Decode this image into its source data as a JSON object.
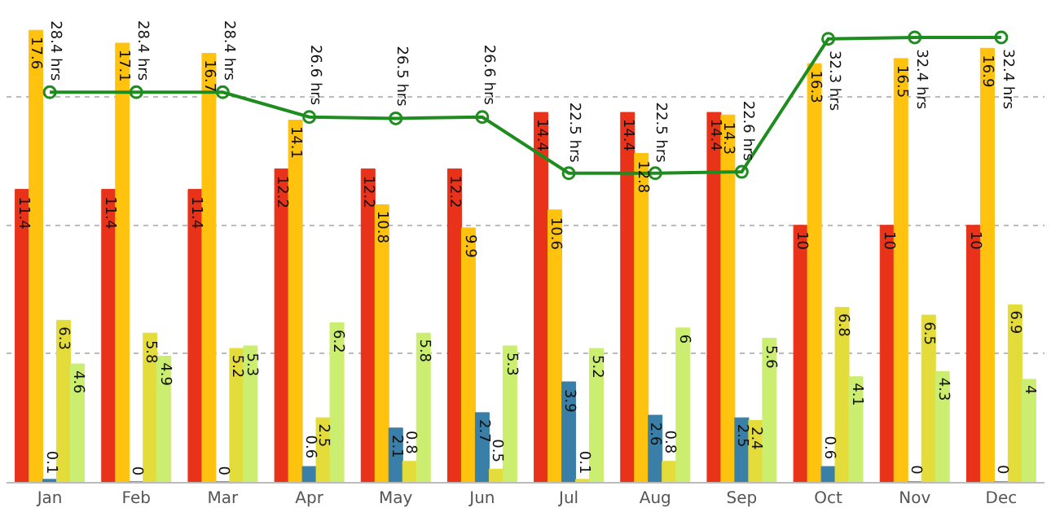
{
  "chart_data": {
    "type": "bar",
    "categories": [
      "Jan",
      "Feb",
      "Mar",
      "Apr",
      "May",
      "Jun",
      "Jul",
      "Aug",
      "Sep",
      "Oct",
      "Nov",
      "Dec"
    ],
    "series": [
      {
        "color": "#e8321a",
        "values": [
          11.4,
          11.4,
          11.4,
          12.2,
          12.2,
          12.2,
          14.4,
          14.4,
          14.4,
          10,
          10,
          10
        ]
      },
      {
        "color": "#ffc20e",
        "values": [
          17.6,
          17.1,
          16.7,
          14.1,
          10.8,
          9.9,
          10.6,
          12.8,
          14.3,
          16.3,
          16.5,
          16.9
        ]
      },
      {
        "color": "#3a7fa8",
        "values": [
          0.1,
          0,
          0,
          0.6,
          2.1,
          2.7,
          3.9,
          2.6,
          2.5,
          0.6,
          0,
          0
        ]
      },
      {
        "color": "#e4dc3a",
        "values": [
          6.3,
          5.8,
          5.2,
          2.5,
          0.8,
          0.5,
          0.1,
          0.8,
          2.4,
          6.8,
          6.5,
          6.9
        ]
      },
      {
        "color": "#ccee70",
        "values": [
          4.6,
          4.9,
          5.3,
          6.2,
          5.8,
          5.3,
          5.2,
          6,
          5.6,
          4.1,
          4.3,
          4
        ]
      },
      {
        "type": "line",
        "axis": "y2",
        "color": "#1e8c1e",
        "marker": "circle",
        "values": [
          28.4,
          28.4,
          28.4,
          26.6,
          26.5,
          26.6,
          22.5,
          22.5,
          22.6,
          32.3,
          32.4,
          32.4
        ],
        "value_labels": [
          "28.4 hrs",
          "28.4 hrs",
          "28.4 hrs",
          "26.6 hrs",
          "26.5 hrs",
          "26.6 hrs",
          "22.5 hrs",
          "22.5 hrs",
          "22.6 hrs",
          "32.3 hrs",
          "32.4 hrs",
          "32.4 hrs"
        ]
      }
    ],
    "data_labels": true,
    "grid": "y",
    "tick_labels": "x"
  }
}
